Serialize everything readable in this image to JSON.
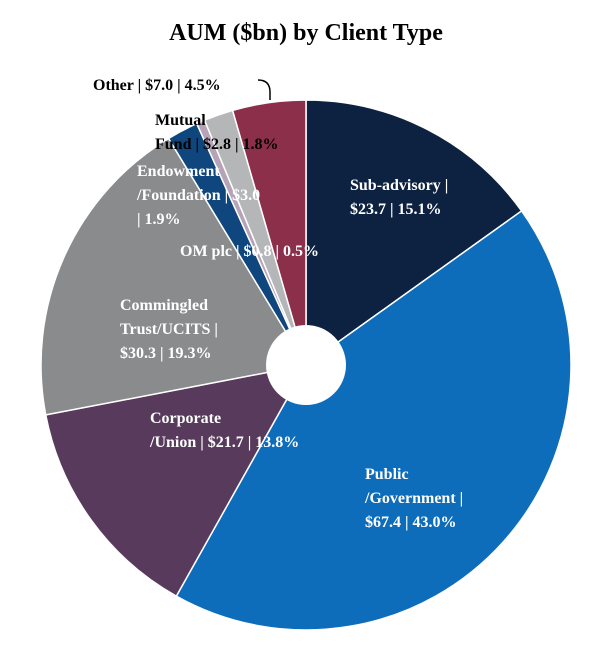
{
  "chart_data": {
    "type": "pie",
    "title": "AUM ($bn) by Client Type",
    "donut_hole": true,
    "legend": "none",
    "slices": [
      {
        "label_lines": [
          "Sub-advisory |",
          "$23.7 | 15.1%"
        ],
        "category": "Sub-advisory",
        "value": 23.7,
        "percent": 15.1,
        "color": "#0d2240",
        "label_color": "#ffffff"
      },
      {
        "label_lines": [
          "Public",
          "/Government |",
          "$67.4 | 43.0%"
        ],
        "category": "Public/Government",
        "value": 67.4,
        "percent": 43.0,
        "color": "#0e6dbb",
        "label_color": "#ffffff"
      },
      {
        "label_lines": [
          "Corporate",
          "/Union | $21.7 | 13.8%"
        ],
        "category": "Corporate/Union",
        "value": 21.7,
        "percent": 13.8,
        "color": "#583b5c",
        "label_color": "#ffffff"
      },
      {
        "label_lines": [
          "Commingled",
          "Trust/UCITS |",
          "$30.3 | 19.3%"
        ],
        "category": "Commingled Trust/UCITS",
        "value": 30.3,
        "percent": 19.3,
        "color": "#8a8b8d",
        "label_color": "#ffffff"
      },
      {
        "label_lines": [
          "Endowment",
          "/Foundation | $3.0",
          "| 1.9%"
        ],
        "category": "Endowment/Foundation",
        "value": 3.0,
        "percent": 1.9,
        "color": "#10467e",
        "label_color": "#ffffff"
      },
      {
        "label_lines": [
          "OM plc | $0.8 | 0.5%"
        ],
        "category": "OM plc",
        "value": 0.8,
        "percent": 0.5,
        "color": "#b7a3b7",
        "label_color": "#ffffff"
      },
      {
        "label_lines": [
          "Mutual",
          "Fund | $2.8 | 1.8%"
        ],
        "category": "Mutual Fund",
        "value": 2.8,
        "percent": 1.8,
        "color": "#b4b6b8",
        "label_color": "#000000"
      },
      {
        "label_lines": [
          "Other | $7.0 | 4.5%"
        ],
        "category": "Other",
        "value": 7.0,
        "percent": 4.5,
        "color": "#8b2f4a",
        "label_color": "#000000"
      }
    ]
  }
}
